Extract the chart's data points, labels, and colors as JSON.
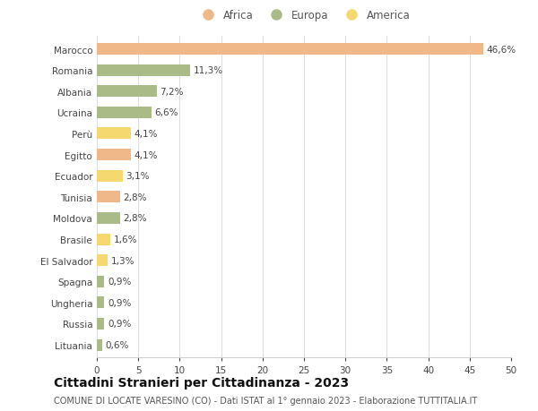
{
  "countries": [
    "Marocco",
    "Romania",
    "Albania",
    "Ucraina",
    "Perù",
    "Egitto",
    "Ecuador",
    "Tunisia",
    "Moldova",
    "Brasile",
    "El Salvador",
    "Spagna",
    "Ungheria",
    "Russia",
    "Lituania"
  ],
  "values": [
    46.6,
    11.3,
    7.2,
    6.6,
    4.1,
    4.1,
    3.1,
    2.8,
    2.8,
    1.6,
    1.3,
    0.9,
    0.9,
    0.9,
    0.6
  ],
  "labels": [
    "46,6%",
    "11,3%",
    "7,2%",
    "6,6%",
    "4,1%",
    "4,1%",
    "3,1%",
    "2,8%",
    "2,8%",
    "1,6%",
    "1,3%",
    "0,9%",
    "0,9%",
    "0,9%",
    "0,6%"
  ],
  "continents": [
    "Africa",
    "Europa",
    "Europa",
    "Europa",
    "America",
    "Africa",
    "America",
    "Africa",
    "Europa",
    "America",
    "America",
    "Europa",
    "Europa",
    "Europa",
    "Europa"
  ],
  "colors": {
    "Africa": "#F0B888",
    "Europa": "#AABB88",
    "America": "#F5D870"
  },
  "xlim": [
    0,
    50
  ],
  "xticks": [
    0,
    5,
    10,
    15,
    20,
    25,
    30,
    35,
    40,
    45,
    50
  ],
  "title": "Cittadini Stranieri per Cittadinanza - 2023",
  "subtitle": "COMUNE DI LOCATE VARESINO (CO) - Dati ISTAT al 1° gennaio 2023 - Elaborazione TUTTITALIA.IT",
  "background_color": "#ffffff",
  "grid_color": "#dddddd",
  "bar_height": 0.55,
  "label_fontsize": 7.5,
  "tick_fontsize": 7.5,
  "title_fontsize": 10,
  "subtitle_fontsize": 7,
  "legend_labels": [
    "Africa",
    "Europa",
    "America"
  ]
}
